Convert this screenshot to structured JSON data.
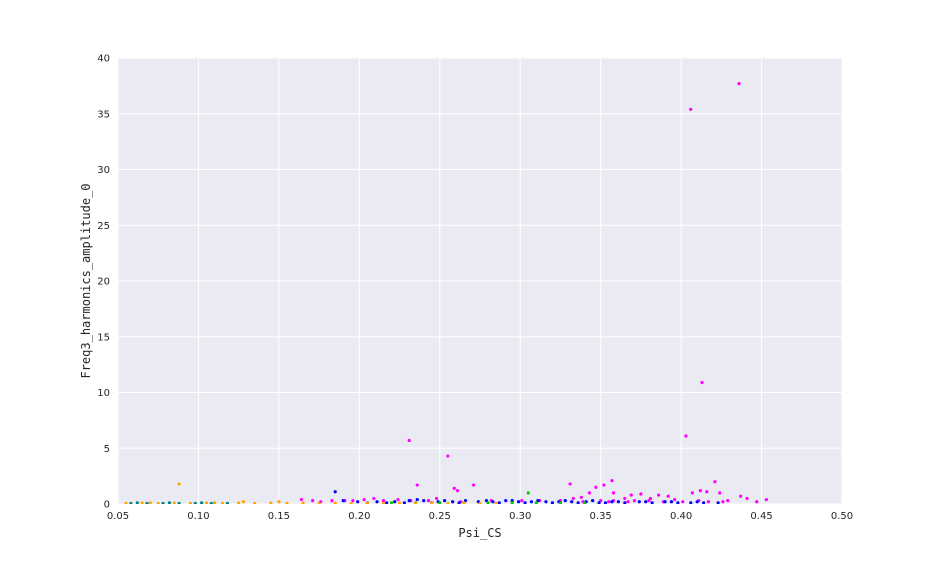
{
  "chart_data": {
    "type": "scatter",
    "title": "",
    "xlabel": "Psi_CS",
    "ylabel": "Freq3_harmonics_amplitude_0",
    "xlim": [
      0.05,
      0.5
    ],
    "ylim": [
      0,
      40
    ],
    "xticks": [
      "0.05",
      "0.10",
      "0.15",
      "0.20",
      "0.25",
      "0.30",
      "0.35",
      "0.40",
      "0.45",
      "0.50"
    ],
    "yticks": [
      "0",
      "5",
      "10",
      "15",
      "20",
      "25",
      "30",
      "35",
      "40"
    ],
    "grid": true,
    "background": "#EAEAF2",
    "grid_color": "#FFFFFF",
    "series": [
      {
        "color": "#FF00FF",
        "points": [
          [
            0.436,
            37.7
          ],
          [
            0.406,
            35.4
          ],
          [
            0.413,
            10.9
          ],
          [
            0.403,
            6.1
          ],
          [
            0.231,
            5.7
          ],
          [
            0.255,
            4.3
          ],
          [
            0.357,
            2.1
          ],
          [
            0.421,
            2.0
          ],
          [
            0.331,
            1.8
          ],
          [
            0.352,
            1.7
          ],
          [
            0.236,
            1.7
          ],
          [
            0.271,
            1.7
          ],
          [
            0.347,
            1.5
          ],
          [
            0.259,
            1.4
          ],
          [
            0.261,
            1.2
          ],
          [
            0.412,
            1.2
          ],
          [
            0.416,
            1.1
          ],
          [
            0.407,
            1.0
          ],
          [
            0.343,
            1.0
          ],
          [
            0.358,
            1.0
          ],
          [
            0.424,
            1.0
          ],
          [
            0.375,
            0.9
          ],
          [
            0.369,
            0.8
          ],
          [
            0.386,
            0.8
          ],
          [
            0.437,
            0.7
          ],
          [
            0.392,
            0.7
          ],
          [
            0.338,
            0.6
          ],
          [
            0.333,
            0.5
          ],
          [
            0.365,
            0.5
          ],
          [
            0.381,
            0.5
          ],
          [
            0.396,
            0.4
          ],
          [
            0.441,
            0.5
          ],
          [
            0.453,
            0.4
          ],
          [
            0.429,
            0.3
          ],
          [
            0.35,
            0.3
          ],
          [
            0.447,
            0.2
          ],
          [
            0.183,
            0.3
          ],
          [
            0.171,
            0.3
          ],
          [
            0.164,
            0.4
          ],
          [
            0.203,
            0.4
          ],
          [
            0.215,
            0.3
          ],
          [
            0.224,
            0.4
          ],
          [
            0.232,
            0.3
          ],
          [
            0.243,
            0.3
          ],
          [
            0.282,
            0.3
          ],
          [
            0.301,
            0.3
          ],
          [
            0.312,
            0.3
          ],
          [
            0.325,
            0.3
          ],
          [
            0.371,
            0.3
          ],
          [
            0.389,
            0.2
          ],
          [
            0.411,
            0.3
          ],
          [
            0.426,
            0.2
          ],
          [
            0.176,
            0.2
          ],
          [
            0.196,
            0.3
          ],
          [
            0.209,
            0.5
          ],
          [
            0.191,
            0.3
          ],
          [
            0.248,
            0.5
          ],
          [
            0.263,
            0.2
          ],
          [
            0.339,
            0.2
          ],
          [
            0.358,
            0.3
          ],
          [
            0.401,
            0.2
          ],
          [
            0.417,
            0.2
          ],
          [
            0.38,
            0.3
          ],
          [
            0.367,
            0.2
          ],
          [
            0.355,
            0.2
          ]
        ]
      },
      {
        "color": "#0000FF",
        "points": [
          [
            0.185,
            1.1
          ],
          [
            0.19,
            0.3
          ],
          [
            0.199,
            0.2
          ],
          [
            0.211,
            0.2
          ],
          [
            0.222,
            0.2
          ],
          [
            0.231,
            0.3
          ],
          [
            0.24,
            0.3
          ],
          [
            0.249,
            0.2
          ],
          [
            0.258,
            0.2
          ],
          [
            0.266,
            0.3
          ],
          [
            0.274,
            0.2
          ],
          [
            0.283,
            0.2
          ],
          [
            0.291,
            0.3
          ],
          [
            0.299,
            0.2
          ],
          [
            0.307,
            0.2
          ],
          [
            0.316,
            0.2
          ],
          [
            0.324,
            0.2
          ],
          [
            0.332,
            0.2
          ],
          [
            0.341,
            0.2
          ],
          [
            0.349,
            0.1
          ],
          [
            0.357,
            0.2
          ],
          [
            0.365,
            0.1
          ],
          [
            0.374,
            0.2
          ],
          [
            0.382,
            0.1
          ],
          [
            0.39,
            0.2
          ],
          [
            0.398,
            0.1
          ],
          [
            0.406,
            0.1
          ],
          [
            0.414,
            0.1
          ],
          [
            0.423,
            0.1
          ],
          [
            0.236,
            0.4
          ],
          [
            0.253,
            0.3
          ],
          [
            0.279,
            0.3
          ],
          [
            0.295,
            0.3
          ],
          [
            0.311,
            0.3
          ],
          [
            0.328,
            0.3
          ],
          [
            0.345,
            0.3
          ],
          [
            0.361,
            0.2
          ],
          [
            0.378,
            0.2
          ],
          [
            0.394,
            0.2
          ],
          [
            0.41,
            0.2
          ],
          [
            0.205,
            0.1
          ],
          [
            0.217,
            0.1
          ],
          [
            0.228,
            0.1
          ],
          [
            0.245,
            0.1
          ],
          [
            0.262,
            0.1
          ],
          [
            0.287,
            0.1
          ],
          [
            0.303,
            0.1
          ],
          [
            0.32,
            0.1
          ],
          [
            0.336,
            0.1
          ],
          [
            0.353,
            0.1
          ]
        ]
      },
      {
        "color": "#00CC00",
        "points": [
          [
            0.305,
            1.0
          ],
          [
            0.265,
            0.1
          ],
          [
            0.28,
            0.1
          ],
          [
            0.295,
            0.1
          ],
          [
            0.31,
            0.1
          ],
          [
            0.25,
            0.1
          ],
          [
            0.235,
            0.1
          ],
          [
            0.325,
            0.1
          ],
          [
            0.34,
            0.1
          ],
          [
            0.22,
            0.1
          ]
        ]
      },
      {
        "color": "#FFA500",
        "points": [
          [
            0.088,
            1.8
          ],
          [
            0.055,
            0.05
          ],
          [
            0.065,
            0.08
          ],
          [
            0.075,
            0.05
          ],
          [
            0.085,
            0.08
          ],
          [
            0.095,
            0.05
          ],
          [
            0.105,
            0.08
          ],
          [
            0.115,
            0.05
          ],
          [
            0.125,
            0.08
          ],
          [
            0.135,
            0.05
          ],
          [
            0.145,
            0.08
          ],
          [
            0.155,
            0.05
          ],
          [
            0.165,
            0.08
          ],
          [
            0.175,
            0.05
          ],
          [
            0.185,
            0.08
          ],
          [
            0.195,
            0.05
          ],
          [
            0.205,
            0.08
          ],
          [
            0.215,
            0.05
          ],
          [
            0.225,
            0.08
          ],
          [
            0.235,
            0.05
          ],
          [
            0.245,
            0.08
          ],
          [
            0.255,
            0.05
          ],
          [
            0.265,
            0.08
          ],
          [
            0.275,
            0.05
          ],
          [
            0.285,
            0.05
          ],
          [
            0.128,
            0.2
          ],
          [
            0.15,
            0.2
          ],
          [
            0.11,
            0.1
          ],
          [
            0.07,
            0.1
          ]
        ]
      },
      {
        "color": "#008080",
        "points": [
          [
            0.058,
            0.05
          ],
          [
            0.068,
            0.05
          ],
          [
            0.078,
            0.05
          ],
          [
            0.088,
            0.05
          ],
          [
            0.098,
            0.05
          ],
          [
            0.108,
            0.05
          ],
          [
            0.118,
            0.05
          ],
          [
            0.062,
            0.1
          ],
          [
            0.082,
            0.1
          ],
          [
            0.102,
            0.1
          ]
        ]
      }
    ]
  }
}
